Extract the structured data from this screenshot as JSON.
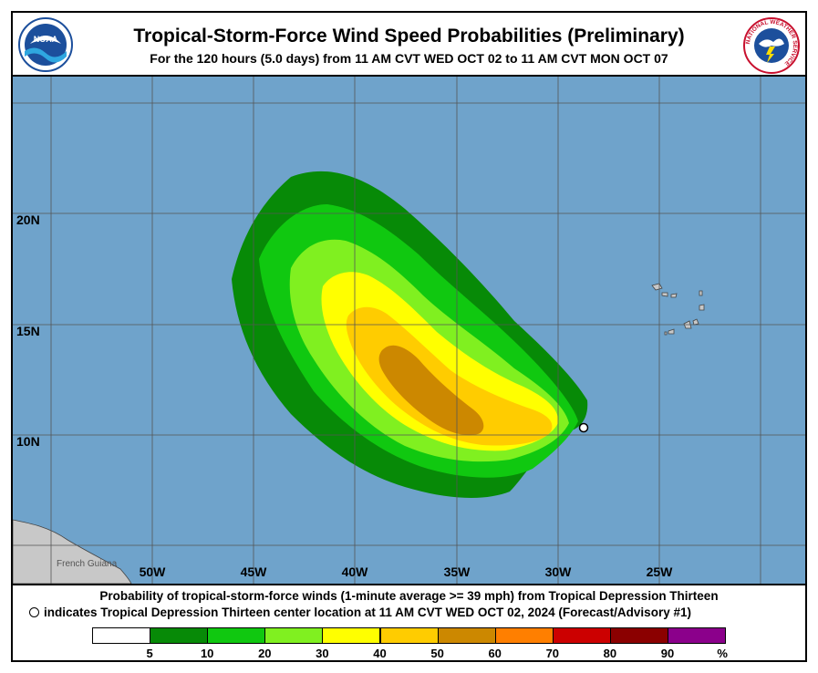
{
  "header": {
    "title": "Tropical-Storm-Force Wind Speed Probabilities (Preliminary)",
    "subtitle": "For the 120 hours (5.0 days) from 11 AM CVT WED OCT 02 to 11 AM CVT MON OCT 07",
    "noaa_logo_text": "NOAA",
    "nws_logo_text": "NATIONAL WEATHER SERVICE"
  },
  "map": {
    "ocean_color": "#6fa3cb",
    "land_color": "#c8c8c8",
    "grid_color": "#555555",
    "lon_labels": [
      "50W",
      "45W",
      "40W",
      "35W",
      "30W",
      "25W"
    ],
    "lat_labels": [
      "20N",
      "15N",
      "10N"
    ],
    "place_label": "French Guiana",
    "center_marker": "tropical depression center"
  },
  "footer": {
    "line1": "Probability of tropical-storm-force winds (1-minute average >= 39 mph) from Tropical Depression Thirteen",
    "line2": "indicates Tropical Depression Thirteen center location at 11 AM CVT WED OCT 02, 2024 (Forecast/Advisory #1)"
  },
  "legend": {
    "colors": [
      "#ffffff",
      "#078a07",
      "#10c810",
      "#80f020",
      "#ffff00",
      "#ffcc00",
      "#cc8800",
      "#ff7f00",
      "#cc0000",
      "#8b0000",
      "#8b008b"
    ],
    "tick_labels": [
      "5",
      "10",
      "20",
      "30",
      "40",
      "50",
      "60",
      "70",
      "80",
      "90"
    ],
    "unit": "%"
  }
}
